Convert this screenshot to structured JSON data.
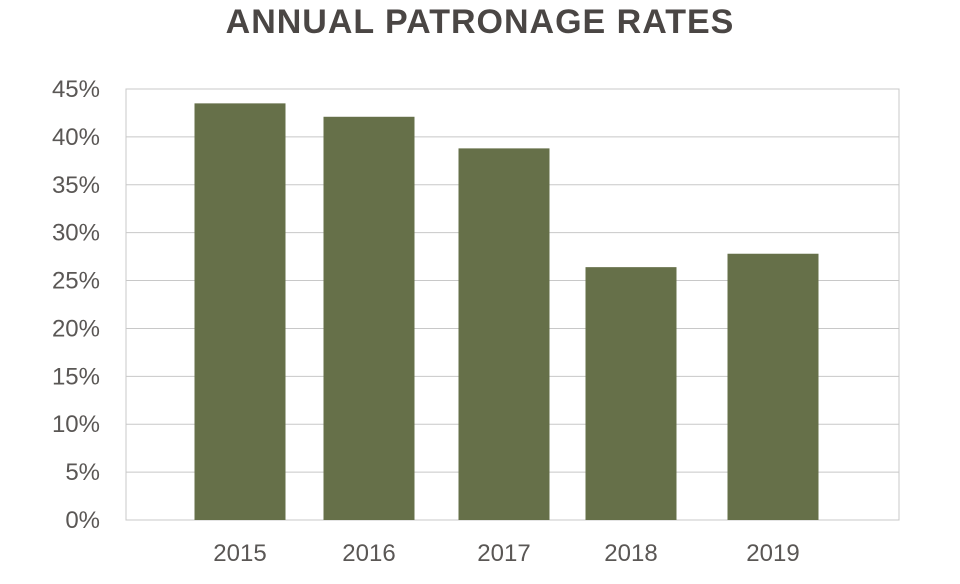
{
  "chart_data": {
    "type": "bar",
    "title": "ANNUAL PATRONAGE RATES",
    "categories": [
      "2015",
      "2016",
      "2017",
      "2018",
      "2019"
    ],
    "values": [
      43.5,
      42.1,
      38.8,
      26.4,
      27.8
    ],
    "y_ticks": [
      "0%",
      "5%",
      "10%",
      "15%",
      "20%",
      "25%",
      "30%",
      "35%",
      "40%",
      "45%"
    ],
    "ylim": [
      0,
      45
    ],
    "grid": true,
    "bar_color": "#667049"
  }
}
